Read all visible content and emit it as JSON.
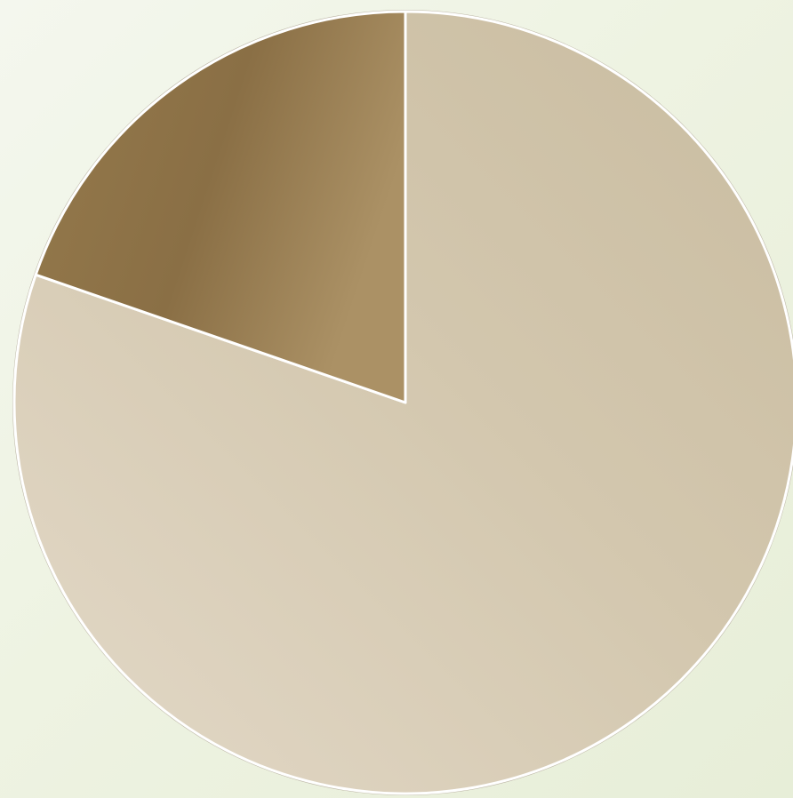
{
  "chart_data": {
    "type": "pie",
    "title": "",
    "start_angle_deg": 0,
    "direction": "clockwise",
    "slices": [
      {
        "label": "",
        "value": 80.3,
        "color": "#cfc3a9"
      },
      {
        "label": "",
        "value": 19.7,
        "color": "#9a7f52"
      }
    ],
    "legend": "none",
    "separator_color": "#ffffff"
  }
}
